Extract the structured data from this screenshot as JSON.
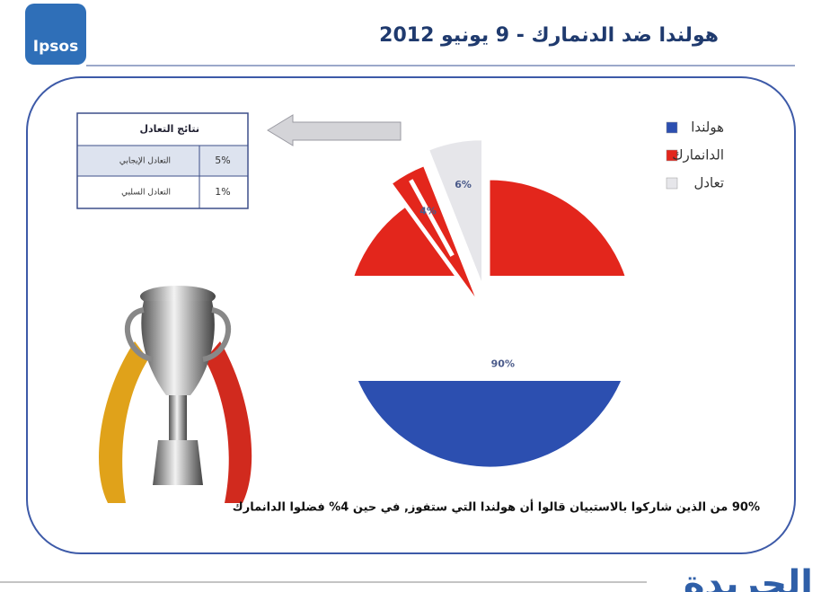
{
  "chart_data": {
    "type": "pie",
    "title": "هولندا ضد الدنمارك - 9 يونيو 2012",
    "categories": [
      "هولندا",
      "الدانمارك",
      "تعادل"
    ],
    "values": [
      90,
      4,
      6
    ],
    "value_labels": [
      "90%",
      "4%",
      "6%"
    ],
    "colors": [
      "#2c4fb0",
      "#e3261c",
      "#e6e6ea"
    ]
  },
  "logo": "Ipsos",
  "table": {
    "title": "نتائج التعادل",
    "rows": [
      [
        "التعادل الإيجابي",
        "5%"
      ],
      [
        "التعادل السلبي",
        "1%"
      ]
    ]
  },
  "footnote": "90% من الذين شاركوا بالاستبيان قالوا أن هولندا التي ستفوز, في حين 4% فضلوا الدانمارك",
  "brand": "الجريدة"
}
